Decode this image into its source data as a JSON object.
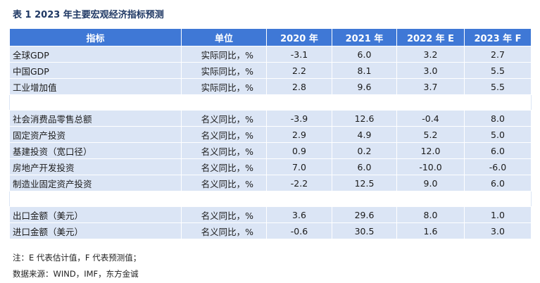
{
  "title": "表 1  2023 年主要宏观经济指标预测",
  "headers": [
    "指标",
    "单位",
    "2020 年",
    "2021 年",
    "2022 年 E",
    "2023 年 F"
  ],
  "groups": [
    {
      "rows": [
        {
          "name": "全球GDP",
          "unit": "实际同比，%",
          "v2020": "-3.1",
          "v2021": "6.0",
          "v2022": "3.2",
          "v2023": "2.7"
        },
        {
          "name": "中国GDP",
          "unit": "实际同比，%",
          "v2020": "2.2",
          "v2021": "8.1",
          "v2022": "3.0",
          "v2023": "5.5"
        },
        {
          "name": "工业增加值",
          "unit": "实际同比，%",
          "v2020": "2.8",
          "v2021": "9.6",
          "v2022": "3.7",
          "v2023": "5.5"
        }
      ]
    },
    {
      "rows": [
        {
          "name": "社会消费品零售总额",
          "unit": "名义同比，%",
          "v2020": "-3.9",
          "v2021": "12.6",
          "v2022": "-0.4",
          "v2023": "8.0"
        },
        {
          "name": "固定资产投资",
          "unit": "名义同比，%",
          "v2020": "2.9",
          "v2021": "4.9",
          "v2022": "5.2",
          "v2023": "5.0"
        },
        {
          "name": "基建投资（宽口径）",
          "unit": "名义同比，%",
          "v2020": "0.9",
          "v2021": "0.2",
          "v2022": "12.0",
          "v2023": "6.0"
        },
        {
          "name": "房地产开发投资",
          "unit": "名义同比，%",
          "v2020": "7.0",
          "v2021": "6.0",
          "v2022": "-10.0",
          "v2023": "-6.0"
        },
        {
          "name": "制造业固定资产投资",
          "unit": "名义同比，%",
          "v2020": "-2.2",
          "v2021": "12.5",
          "v2022": "9.0",
          "v2023": "6.0"
        }
      ]
    },
    {
      "rows": [
        {
          "name": "出口金额（美元）",
          "unit": "名义同比，%",
          "v2020": "3.6",
          "v2021": "29.6",
          "v2022": "8.0",
          "v2023": "1.0"
        },
        {
          "name": "进口金额（美元）",
          "unit": "名义同比，%",
          "v2020": "-0.6",
          "v2021": "30.5",
          "v2022": "1.6",
          "v2023": "3.0"
        }
      ]
    }
  ],
  "note": "注：E 代表估计值，F 代表预测值；",
  "source": "数据来源：WIND，IMF，东方金诚"
}
